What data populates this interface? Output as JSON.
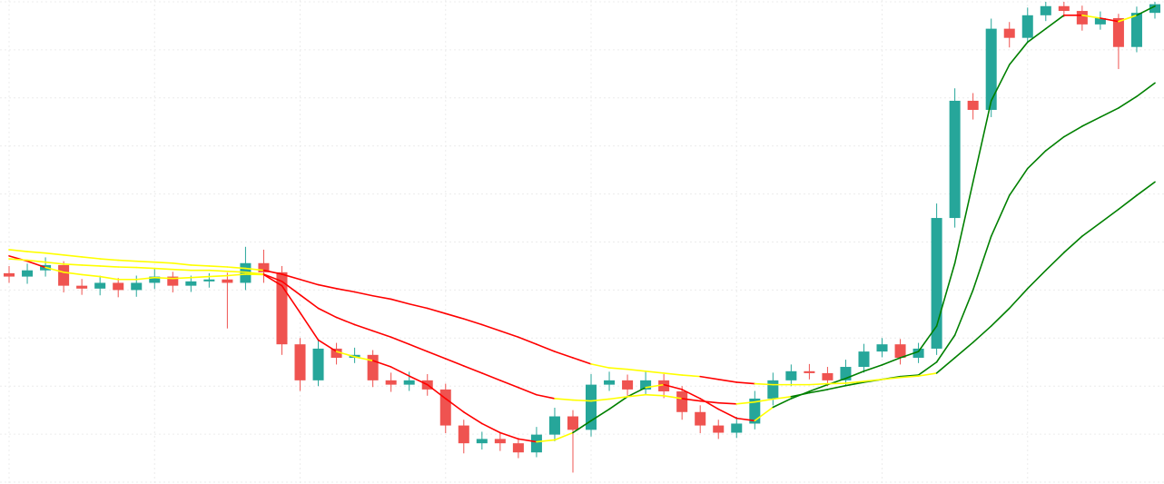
{
  "chart_data": {
    "type": "candlestick",
    "ylim": [
      0,
      100
    ],
    "yticks": [
      0,
      10,
      20,
      30,
      40,
      50,
      60,
      70,
      80,
      90,
      100
    ],
    "xlim": [
      0,
      64
    ],
    "xticks": [
      0,
      8,
      16,
      24,
      32,
      40,
      48,
      56
    ],
    "grid": true,
    "up_color": "#26a69a",
    "down_color": "#ef5350",
    "open": [
      43.5,
      42.8,
      44.1,
      45.2,
      40.9,
      40.3,
      41.5,
      40.0,
      41.5,
      42.8,
      40.9,
      41.8,
      42.2,
      41.5,
      45.6,
      43.7,
      28.7,
      21.2,
      27.8,
      25.9,
      26.5,
      21.2,
      20.3,
      21.2,
      19.3,
      11.8,
      8.1,
      9.0,
      8.1,
      6.2,
      9.9,
      13.7,
      10.9,
      20.3,
      21.2,
      19.3,
      21.2,
      18.9,
      14.6,
      11.8,
      10.3,
      12.2,
      17.4,
      21.2,
      23.1,
      22.7,
      21.2,
      24.0,
      27.2,
      28.7,
      25.9,
      27.8,
      55.0,
      79.4,
      77.5,
      94.4,
      92.5,
      97.2,
      99.1,
      98.1,
      95.3,
      96.6,
      90.6,
      97.7
    ],
    "high": [
      45.0,
      45.5,
      46.8,
      46.0,
      42.3,
      43.0,
      42.5,
      43.0,
      44.5,
      43.8,
      43.0,
      43.5,
      43.6,
      49.0,
      48.4,
      45.0,
      30.0,
      29.5,
      29.0,
      28.0,
      27.5,
      22.8,
      23.0,
      22.5,
      20.5,
      13.0,
      10.5,
      10.2,
      9.2,
      11.5,
      15.5,
      15.0,
      22.5,
      23.0,
      22.4,
      23.0,
      22.5,
      20.0,
      16.0,
      13.0,
      13.6,
      19.0,
      22.8,
      24.5,
      24.6,
      24.0,
      25.5,
      28.8,
      30.0,
      29.8,
      29.0,
      58.0,
      82.0,
      81.0,
      96.5,
      95.8,
      98.8,
      100,
      100,
      99.2,
      98.0,
      97.5,
      99.0,
      100
    ],
    "low": [
      41.5,
      41.3,
      42.8,
      39.5,
      39.0,
      38.9,
      38.5,
      38.6,
      40.2,
      39.5,
      39.6,
      40.5,
      32.0,
      40.0,
      41.5,
      26.5,
      19.0,
      20.0,
      24.5,
      24.8,
      19.8,
      18.8,
      19.0,
      18.0,
      10.2,
      6.0,
      6.8,
      6.5,
      5.0,
      5.2,
      8.5,
      2.0,
      9.5,
      19.0,
      18.0,
      18.2,
      17.5,
      13.0,
      10.2,
      9.0,
      9.2,
      11.0,
      16.0,
      20.0,
      21.4,
      20.0,
      20.2,
      22.8,
      26.0,
      24.5,
      24.8,
      26.5,
      53.0,
      75.5,
      76.0,
      90.5,
      91.5,
      96.0,
      96.8,
      94.0,
      94.2,
      86.0,
      89.5,
      96.5
    ],
    "close": [
      42.8,
      44.1,
      45.2,
      40.9,
      40.3,
      41.5,
      40.0,
      41.5,
      42.8,
      40.9,
      41.8,
      42.2,
      41.5,
      45.6,
      43.7,
      28.7,
      21.2,
      27.8,
      25.9,
      26.5,
      21.2,
      20.3,
      21.2,
      19.3,
      11.8,
      8.1,
      9.0,
      8.1,
      6.2,
      9.9,
      13.7,
      10.9,
      20.3,
      21.2,
      19.3,
      21.2,
      18.9,
      14.6,
      11.8,
      10.3,
      12.2,
      17.4,
      21.2,
      23.1,
      22.7,
      21.2,
      24.0,
      27.2,
      28.7,
      25.9,
      27.8,
      55.0,
      79.4,
      77.5,
      94.4,
      92.5,
      97.2,
      99.1,
      98.1,
      95.3,
      96.6,
      90.6,
      97.7,
      99.5
    ],
    "lines": [
      {
        "values": [
          47.1,
          46.0,
          44.7,
          43.7,
          43.2,
          42.8,
          42.2,
          42.2,
          42.6,
          42.4,
          42.6,
          42.8,
          43.0,
          43.3,
          43.2,
          40.9,
          35.3,
          29.6,
          27.2,
          26.1,
          25.3,
          24.0,
          22.1,
          20.3,
          17.4,
          14.6,
          12.2,
          10.3,
          9.0,
          8.4,
          8.8,
          10.3,
          12.8,
          15.2,
          17.8,
          19.7,
          20.3,
          19.3,
          17.4,
          15.2,
          13.3,
          12.8,
          15.6,
          17.4,
          18.9,
          20.3,
          21.6,
          23.1,
          24.4,
          25.9,
          27.2,
          32.5,
          45.6,
          62.5,
          79.4,
          86.9,
          91.6,
          94.4,
          97.2,
          97.2,
          96.6,
          95.9,
          97.2,
          99.1
        ],
        "colors": [
          "red",
          "red",
          "yellow",
          "yellow",
          "yellow",
          "yellow",
          "yellow",
          "yellow",
          "yellow",
          "yellow",
          "yellow",
          "yellow",
          "yellow",
          "yellow",
          "red",
          "red",
          "red",
          "red",
          "yellow",
          "yellow",
          "red",
          "red",
          "red",
          "red",
          "red",
          "red",
          "red",
          "red",
          "red",
          "yellow",
          "yellow",
          "green",
          "green",
          "green",
          "green",
          "yellow",
          "red",
          "red",
          "red",
          "red",
          "red",
          "yellow",
          "green",
          "green",
          "green",
          "green",
          "green",
          "green",
          "green",
          "green",
          "green",
          "green",
          "green",
          "green",
          "green",
          "green",
          "green",
          "green",
          "red",
          "yellow",
          "red",
          "yellow",
          "green",
          "green"
        ]
      },
      {
        "values": [
          46.5,
          46.2,
          45.8,
          45.4,
          45.2,
          45.0,
          44.8,
          44.7,
          44.5,
          44.3,
          44.1,
          44.1,
          43.9,
          43.7,
          43.3,
          41.8,
          39.0,
          36.2,
          34.3,
          32.8,
          31.5,
          30.2,
          28.7,
          27.2,
          25.7,
          24.2,
          22.7,
          21.2,
          19.7,
          18.2,
          17.4,
          17.1,
          16.9,
          17.3,
          17.8,
          18.2,
          18.0,
          17.4,
          16.9,
          16.5,
          16.3,
          16.7,
          17.3,
          17.8,
          18.6,
          19.3,
          20.1,
          20.8,
          21.4,
          22.0,
          22.3,
          25.0,
          30.6,
          40.0,
          51.2,
          59.7,
          65.3,
          69.0,
          71.9,
          74.1,
          76.0,
          77.9,
          80.3,
          83.1
        ],
        "colors": [
          "yellow",
          "yellow",
          "yellow",
          "yellow",
          "yellow",
          "yellow",
          "yellow",
          "yellow",
          "yellow",
          "yellow",
          "yellow",
          "yellow",
          "yellow",
          "yellow",
          "red",
          "red",
          "red",
          "red",
          "red",
          "red",
          "red",
          "red",
          "red",
          "red",
          "red",
          "red",
          "red",
          "red",
          "red",
          "red",
          "yellow",
          "yellow",
          "yellow",
          "yellow",
          "yellow",
          "yellow",
          "yellow",
          "red",
          "red",
          "red",
          "yellow",
          "yellow",
          "yellow",
          "green",
          "green",
          "green",
          "green",
          "green",
          "green",
          "green",
          "green",
          "green",
          "green",
          "green",
          "green",
          "green",
          "green",
          "green",
          "green",
          "green",
          "green",
          "green",
          "green",
          "green"
        ]
      },
      {
        "values": [
          48.4,
          48.0,
          47.7,
          47.3,
          46.9,
          46.5,
          46.2,
          46.0,
          45.8,
          45.6,
          45.2,
          45.0,
          44.8,
          44.5,
          44.1,
          43.3,
          42.2,
          41.1,
          40.3,
          39.6,
          38.8,
          38.1,
          37.1,
          36.2,
          35.1,
          34.0,
          32.8,
          31.5,
          30.2,
          28.7,
          27.2,
          25.9,
          24.6,
          23.8,
          23.5,
          23.1,
          22.7,
          22.3,
          22.0,
          21.4,
          20.8,
          20.5,
          20.3,
          20.3,
          20.3,
          20.5,
          20.6,
          21.0,
          21.4,
          21.8,
          22.1,
          22.7,
          25.9,
          29.1,
          32.5,
          36.2,
          40.3,
          44.1,
          47.8,
          51.2,
          54.0,
          56.8,
          59.7,
          62.5
        ],
        "colors": [
          "yellow",
          "yellow",
          "yellow",
          "yellow",
          "yellow",
          "yellow",
          "yellow",
          "yellow",
          "yellow",
          "yellow",
          "yellow",
          "yellow",
          "yellow",
          "yellow",
          "red",
          "red",
          "red",
          "red",
          "red",
          "red",
          "red",
          "red",
          "red",
          "red",
          "red",
          "red",
          "red",
          "red",
          "red",
          "red",
          "red",
          "red",
          "yellow",
          "yellow",
          "yellow",
          "yellow",
          "yellow",
          "yellow",
          "red",
          "red",
          "red",
          "yellow",
          "yellow",
          "yellow",
          "yellow",
          "yellow",
          "yellow",
          "yellow",
          "yellow",
          "yellow",
          "yellow",
          "green",
          "green",
          "green",
          "green",
          "green",
          "green",
          "green",
          "green",
          "green",
          "green",
          "green",
          "green",
          "green"
        ]
      }
    ]
  }
}
